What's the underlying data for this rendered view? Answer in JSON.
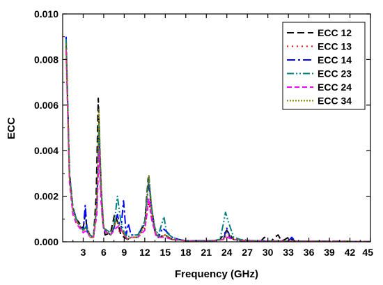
{
  "chart_data": {
    "type": "line",
    "xlabel": "Frequency (GHz)",
    "ylabel": "ECC",
    "xlim": [
      0,
      45
    ],
    "ylim": [
      0,
      0.01
    ],
    "xticks": [
      3,
      6,
      9,
      12,
      15,
      18,
      21,
      24,
      27,
      30,
      33,
      36,
      39,
      42,
      45
    ],
    "xtick_labels": [
      "3",
      "6",
      "9",
      "12",
      "15",
      "18",
      "21",
      "24",
      "27",
      "30",
      "33",
      "36",
      "39",
      "42",
      "45"
    ],
    "yticks": [
      0,
      0.002,
      0.004,
      0.006,
      0.008,
      0.01
    ],
    "ytick_labels": [
      "0.000",
      "0.002",
      "0.004",
      "0.006",
      "0.008",
      "0.010"
    ],
    "legend_position": "top-right",
    "grid": false,
    "series": [
      {
        "name": "ECC 12",
        "color": "#000000",
        "dash": "10,5",
        "x": [
          0.5,
          1,
          1.5,
          2,
          2.5,
          3,
          3.3,
          3.6,
          4,
          4.5,
          4.9,
          5.2,
          5.5,
          5.8,
          6.2,
          7,
          7.6,
          8,
          8.5,
          9,
          9.5,
          10,
          11,
          12,
          12.5,
          13,
          13.5,
          14,
          15,
          16,
          17,
          18,
          20,
          22,
          23,
          24,
          25,
          26,
          28,
          29,
          29.5,
          30,
          30.5,
          31,
          31.5,
          32,
          32.5,
          33,
          33.5,
          34,
          35,
          38,
          41,
          45
        ],
        "y": [
          0.0088,
          0.003,
          0.0015,
          0.001,
          0.0008,
          0.0006,
          0.0012,
          0.0005,
          0.0003,
          0.0002,
          0.002,
          0.0063,
          0.0035,
          0.001,
          0.0003,
          0.0004,
          0.0012,
          0.0009,
          0.0003,
          0.0002,
          0.0001,
          0.0002,
          0.0002,
          0.0009,
          0.0028,
          0.0015,
          0.0005,
          0.0002,
          0.0003,
          0.0001,
          0.0001,
          3e-05,
          5e-05,
          5e-05,
          0.0001,
          0.0005,
          0.0001,
          5e-05,
          5e-05,
          4e-05,
          0.0002,
          3e-05,
          3e-05,
          0.0002,
          0.0003,
          3e-05,
          0.0001,
          0.0002,
          0.0001,
          3e-05,
          2e-05,
          2e-05,
          2e-05,
          1e-05
        ]
      },
      {
        "name": "ECC 13",
        "color": "#ff0000",
        "dash": "2,5",
        "x": [
          0.5,
          1,
          1.5,
          2,
          2.5,
          3,
          3.5,
          4,
          4.5,
          5,
          5.3,
          5.6,
          6,
          7,
          7.7,
          8,
          8.8,
          9.5,
          10,
          11,
          12,
          12.6,
          13,
          13.6,
          14,
          15,
          16,
          18,
          20,
          22,
          23.5,
          24,
          25,
          27,
          30,
          33,
          36,
          40,
          45
        ],
        "y": [
          0.0085,
          0.0028,
          0.0014,
          0.0009,
          0.0007,
          0.0005,
          0.0006,
          0.0002,
          0.0002,
          0.0015,
          0.0048,
          0.0022,
          0.0006,
          0.0003,
          0.0008,
          0.0005,
          0.0004,
          0.0001,
          0.0002,
          0.0002,
          0.0006,
          0.0018,
          0.001,
          0.0003,
          0.0002,
          0.0003,
          0.0001,
          5e-05,
          3e-05,
          5e-05,
          0.0001,
          0.0003,
          0.0001,
          5e-05,
          3e-05,
          3e-05,
          2e-05,
          2e-05,
          1e-05
        ]
      },
      {
        "name": "ECC 14",
        "color": "#0000ff",
        "dash": "12,4,3,4",
        "x": [
          0.5,
          1,
          1.5,
          2,
          2.5,
          3,
          3.3,
          3.6,
          4,
          4.5,
          5,
          5.3,
          5.6,
          6,
          7,
          7.5,
          8,
          8.5,
          8.9,
          9.3,
          9.6,
          10,
          11,
          12,
          12.6,
          13,
          13.5,
          14,
          14.6,
          15,
          16,
          17,
          18,
          20,
          22,
          23.5,
          24,
          24.5,
          25,
          27,
          30,
          33,
          33.5,
          34,
          36,
          40,
          45
        ],
        "y": [
          0.009,
          0.0029,
          0.0015,
          0.001,
          0.0007,
          0.0005,
          0.0016,
          0.0004,
          0.0003,
          0.0002,
          0.0016,
          0.0047,
          0.0024,
          0.0006,
          0.0003,
          0.0006,
          0.0012,
          0.0005,
          0.0018,
          0.0003,
          0.0008,
          0.0003,
          0.0003,
          0.0008,
          0.0027,
          0.0014,
          0.0004,
          0.0002,
          0.0006,
          0.0005,
          0.0002,
          0.0001,
          5e-05,
          5e-05,
          5e-05,
          0.0001,
          0.0006,
          0.0002,
          0.0001,
          5e-05,
          4e-05,
          3e-05,
          0.0002,
          3e-05,
          2e-05,
          2e-05,
          1e-05
        ]
      },
      {
        "name": "ECC 23",
        "color": "#008080",
        "dash": "10,3,2,3,2,3",
        "x": [
          0.5,
          1,
          1.5,
          2,
          2.5,
          3,
          3.5,
          4,
          4.5,
          5,
          5.3,
          5.6,
          6,
          7,
          7.5,
          8,
          8.5,
          9,
          9.5,
          10,
          11,
          12,
          12.6,
          13,
          13.5,
          14,
          14.8,
          15.2,
          16,
          17,
          18,
          20,
          22,
          23,
          23.5,
          23.8,
          24.2,
          25,
          26,
          28,
          30,
          33,
          36,
          40,
          45
        ],
        "y": [
          0.0089,
          0.003,
          0.0015,
          0.001,
          0.0007,
          0.0005,
          0.0007,
          0.0003,
          0.0002,
          0.0016,
          0.0052,
          0.0024,
          0.0006,
          0.0004,
          0.0007,
          0.002,
          0.0009,
          0.0004,
          0.0002,
          0.0003,
          0.0003,
          0.0009,
          0.0029,
          0.0015,
          0.0006,
          0.0003,
          0.0011,
          0.0004,
          0.0002,
          0.0001,
          5e-05,
          4e-05,
          5e-05,
          0.0001,
          0.0008,
          0.0013,
          0.0009,
          0.0002,
          0.0001,
          5e-05,
          4e-05,
          3e-05,
          2e-05,
          2e-05,
          1e-05
        ]
      },
      {
        "name": "ECC 24",
        "color": "#ff00ff",
        "dash": "7,4",
        "x": [
          0.5,
          1,
          1.5,
          2,
          2.5,
          3,
          3.5,
          4,
          4.5,
          5,
          5.3,
          5.6,
          6,
          7,
          7.8,
          8.2,
          9,
          9.5,
          10,
          11,
          12,
          12.6,
          13,
          13.6,
          14,
          15,
          16,
          18,
          20,
          22,
          23.5,
          24,
          25,
          27,
          30,
          33,
          36,
          40,
          45
        ],
        "y": [
          0.0084,
          0.0026,
          0.0012,
          0.0008,
          0.0006,
          0.0004,
          0.0005,
          0.0002,
          0.0002,
          0.0012,
          0.004,
          0.0018,
          0.0005,
          0.0003,
          0.0006,
          0.0007,
          0.0003,
          0.0001,
          0.0002,
          0.0002,
          0.0005,
          0.0019,
          0.001,
          0.0003,
          0.0002,
          0.0002,
          0.0001,
          5e-05,
          3e-05,
          4e-05,
          0.0001,
          0.0002,
          0.0001,
          4e-05,
          3e-05,
          3e-05,
          2e-05,
          2e-05,
          1e-05
        ]
      },
      {
        "name": "ECC 34",
        "color": "#808000",
        "dash": "2,2",
        "x": [
          0.5,
          1,
          1.5,
          2,
          2.5,
          3,
          3.5,
          4,
          4.5,
          5,
          5.3,
          5.6,
          6,
          7,
          7.8,
          8.2,
          9,
          9.5,
          10,
          11,
          12,
          12.6,
          13,
          13.6,
          14,
          15,
          16,
          18,
          20,
          22,
          23.5,
          24,
          25,
          27,
          30,
          33,
          36,
          40,
          45
        ],
        "y": [
          0.0087,
          0.0028,
          0.0014,
          0.0009,
          0.0007,
          0.0005,
          0.0006,
          0.0002,
          0.0002,
          0.0017,
          0.0058,
          0.0026,
          0.0006,
          0.0003,
          0.0009,
          0.0008,
          0.0003,
          0.0001,
          0.0002,
          0.0002,
          0.0007,
          0.0029,
          0.0014,
          0.0004,
          0.0002,
          0.0003,
          0.0001,
          5e-05,
          3e-05,
          4e-05,
          0.0001,
          0.0004,
          0.0001,
          4e-05,
          3e-05,
          3e-05,
          2e-05,
          2e-05,
          1e-05
        ]
      }
    ]
  }
}
